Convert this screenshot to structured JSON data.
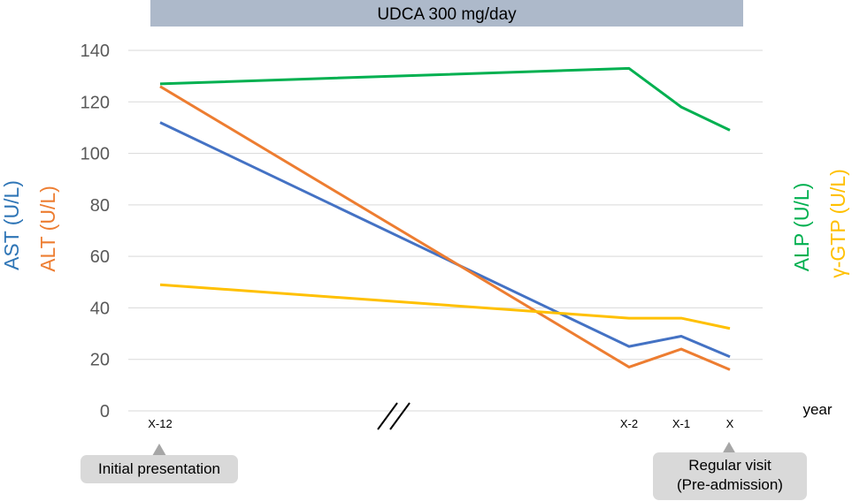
{
  "banner": {
    "text": "UDCA 300 mg/day",
    "color": "#adb9ca"
  },
  "chart_data": {
    "type": "line",
    "categories": [
      "X-12",
      "X-2",
      "X-1",
      "X"
    ],
    "x_unit_label": "year",
    "axis_break_between": [
      "X-12",
      "X-2"
    ],
    "ylim": [
      0,
      140
    ],
    "yticks": [
      0,
      20,
      40,
      60,
      80,
      100,
      120,
      140
    ],
    "grid": true,
    "ylabel_left": [
      {
        "text": "AST (U/L)",
        "color": "#2e75b6"
      },
      {
        "text": "ALT (U/L)",
        "color": "#ed7d31"
      }
    ],
    "ylabel_right": [
      {
        "text": "ALP (U/L)",
        "color": "#00b050"
      },
      {
        "text": "γ-GTP (U/L)",
        "color": "#ffc000"
      }
    ],
    "series": [
      {
        "key": "ast",
        "values": [
          112,
          25,
          29,
          21
        ],
        "color": "#4472c4"
      },
      {
        "key": "alt",
        "values": [
          126,
          17,
          24,
          16
        ],
        "color": "#ed7d31"
      },
      {
        "key": "alp",
        "values": [
          127,
          133,
          118,
          109
        ],
        "color": "#00b050"
      },
      {
        "key": "ggtp",
        "values": [
          49,
          36,
          36,
          32
        ],
        "color": "#ffc000"
      }
    ]
  },
  "callouts": {
    "initial": "Initial presentation",
    "regular_line1": "Regular visit",
    "regular_line2": "(Pre-admission)"
  }
}
